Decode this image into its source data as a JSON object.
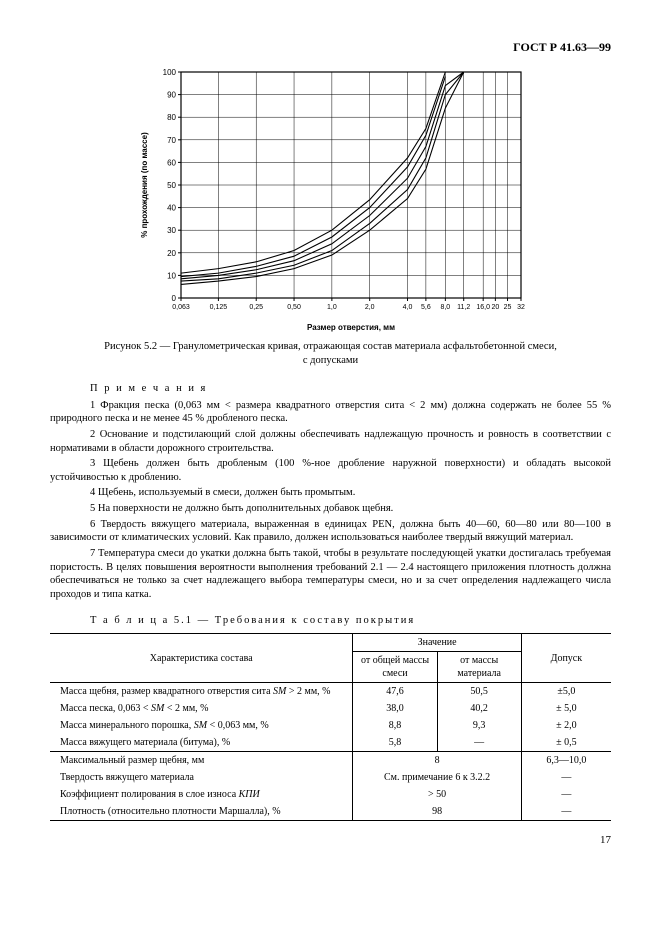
{
  "header": {
    "doc_id": "ГОСТ Р 41.63—99",
    "page_number": "17"
  },
  "chart": {
    "type": "line",
    "title": "",
    "ylabel": "% прохождения (по массе)",
    "xlabel": "Размер отверстия, мм",
    "xlim": [
      0.063,
      32
    ],
    "ylim": [
      0,
      100
    ],
    "xticks": [
      0.063,
      0.125,
      0.25,
      0.5,
      1.0,
      2.0,
      4.0,
      5.6,
      8.0,
      11.2,
      16.0,
      20,
      25,
      32
    ],
    "xtick_labels": [
      "0,063",
      "0,125",
      "0,25",
      "0,50",
      "1,0",
      "2,0",
      "4,0",
      "5,6",
      "8,0",
      "11,2",
      "16,0",
      "20",
      "25",
      "32"
    ],
    "yticks": [
      0,
      10,
      20,
      30,
      40,
      50,
      60,
      70,
      80,
      90,
      100
    ],
    "grid_on": true,
    "grid_color": "#000000",
    "background_color": "#ffffff",
    "line_color": "#000000",
    "line_width": 1.1,
    "series": {
      "upper": [
        [
          0.063,
          11
        ],
        [
          0.125,
          13
        ],
        [
          0.25,
          16
        ],
        [
          0.5,
          21
        ],
        [
          1.0,
          30
        ],
        [
          2.0,
          43.5
        ],
        [
          4.0,
          62
        ],
        [
          5.6,
          75
        ],
        [
          8.0,
          100
        ]
      ],
      "upper_mid": [
        [
          0.063,
          9.5
        ],
        [
          0.125,
          11
        ],
        [
          0.25,
          14
        ],
        [
          0.5,
          18.5
        ],
        [
          1.0,
          27
        ],
        [
          2.0,
          40
        ],
        [
          4.0,
          58
        ],
        [
          5.6,
          72
        ],
        [
          8.0,
          98
        ]
      ],
      "nominal": [
        [
          0.063,
          8.5
        ],
        [
          0.125,
          10
        ],
        [
          0.25,
          12.5
        ],
        [
          0.5,
          16.5
        ],
        [
          1.0,
          24
        ],
        [
          2.0,
          36.5
        ],
        [
          4.0,
          53
        ],
        [
          5.6,
          67
        ],
        [
          8.0,
          94
        ],
        [
          11.2,
          100
        ]
      ],
      "lower_mid": [
        [
          0.063,
          7.5
        ],
        [
          0.125,
          8.5
        ],
        [
          0.25,
          11
        ],
        [
          0.5,
          14.5
        ],
        [
          1.0,
          21
        ],
        [
          2.0,
          33
        ],
        [
          4.0,
          48
        ],
        [
          5.6,
          62
        ],
        [
          8.0,
          90
        ],
        [
          11.2,
          100
        ]
      ],
      "lower": [
        [
          0.063,
          6
        ],
        [
          0.125,
          7.5
        ],
        [
          0.25,
          9.5
        ],
        [
          0.5,
          13
        ],
        [
          1.0,
          19
        ],
        [
          2.0,
          30
        ],
        [
          4.0,
          44
        ],
        [
          5.6,
          57
        ],
        [
          8.0,
          84
        ],
        [
          11.2,
          100
        ]
      ]
    },
    "caption_line1": "Рисунок 5.2 — Гранулометрическая кривая, отражающая состав материала асфальтобетонной смеси,",
    "caption_line2": "с допусками"
  },
  "notes": {
    "title": "П р и м е ч а н и я",
    "items": [
      "1 Фракция песка (0,063 мм < размера квадратного отверстия сита < 2 мм) должна содержать не более 55 % природного песка и не менее 45 % дробленого песка.",
      "2 Основание и подстилающий слой должны обеспечивать надлежащую прочность и ровность в соответствии с нормативами в области дорожного строительства.",
      "3 Щебень должен быть дробленым (100 %-ное дробление наружной поверхности) и обладать высокой устойчивостью к дроблению.",
      "4 Щебень, используемый в смеси, должен быть промытым.",
      "5 На поверхности не должно быть дополнительных добавок щебня.",
      "6 Твердость вяжущего материала, выраженная в единицах PEN, должна быть 40—60, 60—80 или 80—100 в зависимости от климатических условий. Как правило, должен использоваться наиболее твердый вяжущий материал.",
      "7 Температура смеси до укатки должна быть такой, чтобы в результате последующей укатки достигалась требуемая пористость. В целях повышения вероятности выполнения требований 2.1 — 2.4 настоящего приложения плотность должна обеспечиваться не только за счет надлежащего выбора температуры смеси, но и за счет определения надлежащего числа проходов и типа катка."
    ]
  },
  "table": {
    "title": "Т а б л и ц а  5.1 — Требования к составу покрытия",
    "col_widths_pct": [
      54,
      15,
      15,
      16
    ],
    "header": {
      "c1": "Характеристика состава",
      "c2span": "Значение",
      "c2a": "от общей массы смеси",
      "c2b": "от массы материала",
      "c3": "Допуск"
    },
    "rows_a": [
      {
        "label": "Масса щебня, размер квадратного отверстия сита <span class='italic'>SM</span> > 2 мм, %",
        "v1": "47,6",
        "v2": "50,5",
        "tol": "±5,0"
      },
      {
        "label": "Масса песка, 0,063 < <span class='italic'>SM</span> < 2 мм, %",
        "v1": "38,0",
        "v2": "40,2",
        "tol": "± 5,0"
      },
      {
        "label": "Масса минерального порошка, <span class='italic'>SM</span> < 0,063 мм, %",
        "v1": "8,8",
        "v2": "9,3",
        "tol": "± 2,0"
      },
      {
        "label": "Масса вяжущего материала (битума), %",
        "v1": "5,8",
        "v2": "—",
        "tol": "± 0,5"
      }
    ],
    "rows_b": [
      {
        "label": "Максимальный размер щебня, мм",
        "val": "8",
        "tol": "6,3—10,0"
      },
      {
        "label": "Твердость вяжущего материала",
        "val": "См. примечание 6 к 3.2.2",
        "tol": "—"
      },
      {
        "label": "Коэффициент полирования в слое износа <span class='italic'>КПИ</span>",
        "val": "> 50",
        "tol": "—"
      },
      {
        "label": "Плотность (относительно плотности Маршалла), %",
        "val": "98",
        "tol": "—"
      }
    ]
  }
}
